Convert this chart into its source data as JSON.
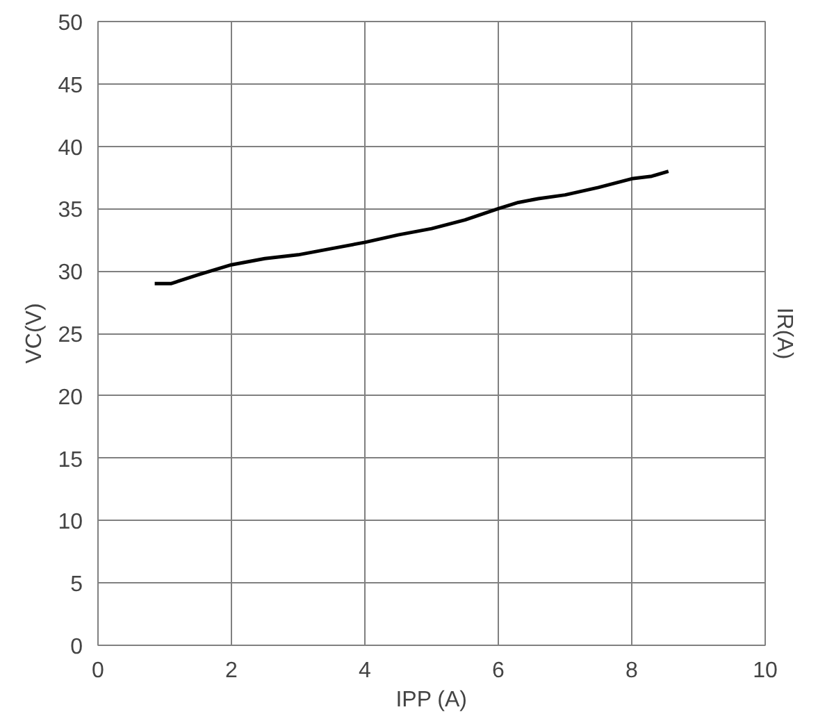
{
  "chart_data": {
    "type": "line",
    "xlabel": "IPP (A)",
    "ylabel": "VC(V)",
    "y2label": "IR(A)",
    "x": [
      0.85,
      1.1,
      1.5,
      2.0,
      2.5,
      3.0,
      3.5,
      4.0,
      4.5,
      5.0,
      5.5,
      6.0,
      6.3,
      6.6,
      7.0,
      7.5,
      8.0,
      8.3,
      8.55
    ],
    "series": [
      {
        "color": "#000000",
        "values": [
          29.0,
          29.0,
          29.7,
          30.5,
          31.0,
          31.3,
          31.8,
          32.3,
          32.9,
          33.4,
          34.1,
          35.0,
          35.5,
          35.8,
          36.1,
          36.7,
          37.4,
          37.6,
          38.0
        ]
      }
    ],
    "xlim": [
      0,
      10
    ],
    "xticks": [
      0,
      2,
      4,
      6,
      8,
      10
    ],
    "ylim": [
      0,
      50
    ],
    "yticks": [
      0,
      5,
      10,
      15,
      20,
      25,
      30,
      35,
      40,
      45,
      50
    ],
    "grid": true,
    "marker": "none",
    "line_style": "solid"
  }
}
